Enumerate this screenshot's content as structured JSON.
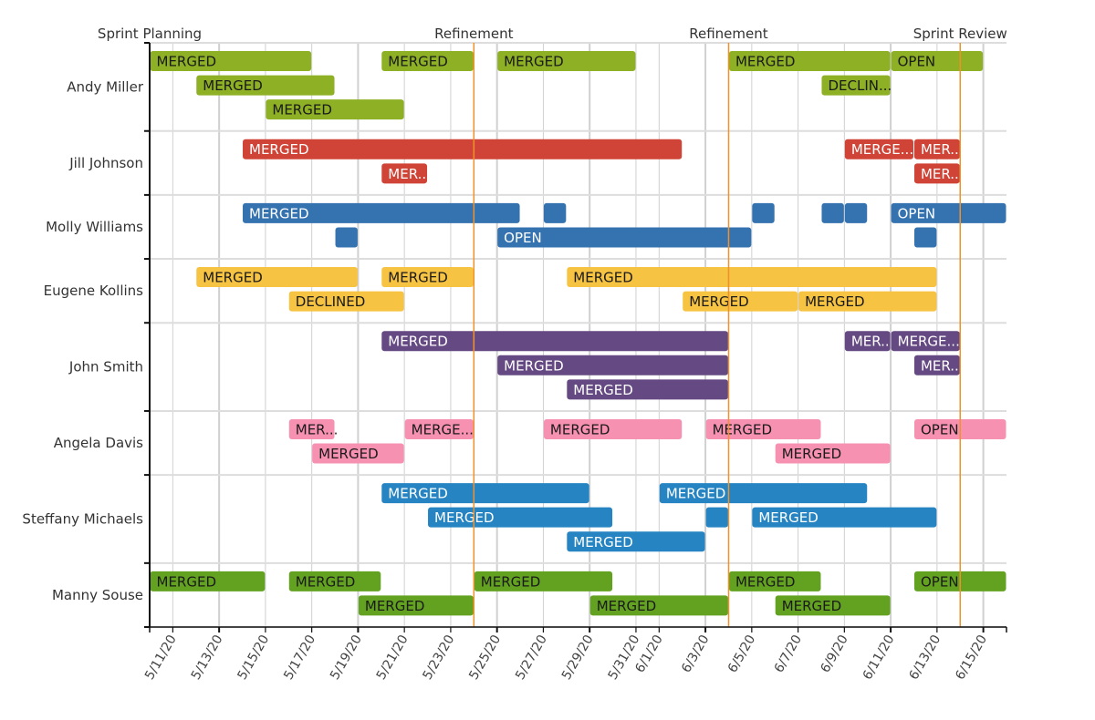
{
  "chart_data": {
    "type": "gantt",
    "title": "",
    "xlabel": "",
    "ylabel": "",
    "x_start": "5/10/20",
    "x_end": "6/16/20",
    "x_ticks": [
      "5/11/20",
      "5/13/20",
      "5/15/20",
      "5/17/20",
      "5/19/20",
      "5/21/20",
      "5/23/20",
      "5/25/20",
      "5/27/20",
      "5/29/20",
      "5/31/20",
      "6/1/20",
      "6/3/20",
      "6/5/20",
      "6/7/20",
      "6/9/20",
      "6/11/20",
      "6/13/20",
      "6/15/20"
    ],
    "x_tick_days": [
      1,
      3,
      5,
      7,
      9,
      11,
      13,
      15,
      17,
      19,
      21,
      22,
      24,
      26,
      28,
      30,
      32,
      34,
      36
    ],
    "grid": true,
    "milestones": [
      {
        "label": "Sprint Planning",
        "date": "5/10/20",
        "day": 0
      },
      {
        "label": "Refinement",
        "date": "5/24/20",
        "day": 14
      },
      {
        "label": "Refinement",
        "date": "6/4/20",
        "day": 25
      },
      {
        "label": "Sprint Review",
        "date": "6/14/20",
        "day": 35
      }
    ],
    "milestone_color": "#f0922b",
    "rows": [
      {
        "name": "Andy Miller",
        "color": "#8db024",
        "text_color": "#1a1a1a",
        "lanes": 3,
        "bars": [
          {
            "lane": 0,
            "start": 0,
            "end": 7,
            "label": "MERGED"
          },
          {
            "lane": 0,
            "start": 10,
            "end": 14,
            "label": "MERGED"
          },
          {
            "lane": 0,
            "start": 15,
            "end": 21,
            "label": "MERGED"
          },
          {
            "lane": 0,
            "start": 25,
            "end": 32,
            "label": "MERGED"
          },
          {
            "lane": 0,
            "start": 32,
            "end": 36,
            "label": "OPEN"
          },
          {
            "lane": 1,
            "start": 2,
            "end": 8,
            "label": "MERGED"
          },
          {
            "lane": 1,
            "start": 29,
            "end": 32,
            "label": "DECLIN..."
          },
          {
            "lane": 2,
            "start": 5,
            "end": 11,
            "label": "MERGED"
          }
        ]
      },
      {
        "name": "Jill Johnson",
        "color": "#d04437",
        "text_color": "#ffffff",
        "lanes": 2,
        "bars": [
          {
            "lane": 0,
            "start": 4,
            "end": 23,
            "label": "MERGED"
          },
          {
            "lane": 0,
            "start": 30,
            "end": 33,
            "label": "MERGE..."
          },
          {
            "lane": 0,
            "start": 33,
            "end": 35,
            "label": "MER.."
          },
          {
            "lane": 1,
            "start": 10,
            "end": 12,
            "label": "MER.."
          },
          {
            "lane": 1,
            "start": 33,
            "end": 35,
            "label": "MER.."
          }
        ]
      },
      {
        "name": "Molly Williams",
        "color": "#3572b0",
        "text_color": "#ffffff",
        "lanes": 2,
        "bars": [
          {
            "lane": 0,
            "start": 4,
            "end": 16,
            "label": "MERGED"
          },
          {
            "lane": 0,
            "start": 17,
            "end": 18,
            "label": ""
          },
          {
            "lane": 0,
            "start": 26,
            "end": 27,
            "label": ""
          },
          {
            "lane": 0,
            "start": 29,
            "end": 30,
            "label": ""
          },
          {
            "lane": 0,
            "start": 30,
            "end": 31,
            "label": ""
          },
          {
            "lane": 0,
            "start": 32,
            "end": 37,
            "label": "OPEN"
          },
          {
            "lane": 1,
            "start": 8,
            "end": 9,
            "label": ""
          },
          {
            "lane": 1,
            "start": 15,
            "end": 26,
            "label": "OPEN"
          },
          {
            "lane": 1,
            "start": 33,
            "end": 34,
            "label": ""
          }
        ]
      },
      {
        "name": "Eugene Kollins",
        "color": "#f6c342",
        "text_color": "#1a1a1a",
        "lanes": 2,
        "bars": [
          {
            "lane": 0,
            "start": 2,
            "end": 9,
            "label": "MERGED"
          },
          {
            "lane": 0,
            "start": 10,
            "end": 14,
            "label": "MERGED"
          },
          {
            "lane": 0,
            "start": 18,
            "end": 34,
            "label": "MERGED"
          },
          {
            "lane": 1,
            "start": 6,
            "end": 11,
            "label": "DECLINED"
          },
          {
            "lane": 1,
            "start": 23,
            "end": 28,
            "label": "MERGED"
          },
          {
            "lane": 1,
            "start": 28,
            "end": 34,
            "label": "MERGED"
          }
        ]
      },
      {
        "name": "John Smith",
        "color": "#654982",
        "text_color": "#ffffff",
        "lanes": 3,
        "bars": [
          {
            "lane": 0,
            "start": 10,
            "end": 25,
            "label": "MERGED"
          },
          {
            "lane": 0,
            "start": 30,
            "end": 32,
            "label": "MER.."
          },
          {
            "lane": 0,
            "start": 32,
            "end": 35,
            "label": "MERGE..."
          },
          {
            "lane": 1,
            "start": 15,
            "end": 25,
            "label": "MERGED"
          },
          {
            "lane": 1,
            "start": 33,
            "end": 35,
            "label": "MER.."
          },
          {
            "lane": 2,
            "start": 18,
            "end": 25,
            "label": "MERGED"
          }
        ]
      },
      {
        "name": "Angela Davis",
        "color": "#f691b2",
        "text_color": "#1a1a1a",
        "lanes": 2,
        "bars": [
          {
            "lane": 0,
            "start": 6,
            "end": 8,
            "label": "MER..."
          },
          {
            "lane": 0,
            "start": 11,
            "end": 14,
            "label": "MERGE..."
          },
          {
            "lane": 0,
            "start": 17,
            "end": 23,
            "label": "MERGED"
          },
          {
            "lane": 0,
            "start": 24,
            "end": 29,
            "label": "MERGED"
          },
          {
            "lane": 0,
            "start": 33,
            "end": 37,
            "label": "OPEN"
          },
          {
            "lane": 1,
            "start": 7,
            "end": 11,
            "label": "MERGED"
          },
          {
            "lane": 1,
            "start": 27,
            "end": 32,
            "label": "MERGED"
          }
        ]
      },
      {
        "name": "Steffany Michaels",
        "color": "#2684c2",
        "text_color": "#ffffff",
        "lanes": 3,
        "bars": [
          {
            "lane": 0,
            "start": 10,
            "end": 19,
            "label": "MERGED"
          },
          {
            "lane": 0,
            "start": 22,
            "end": 31,
            "label": "MERGED"
          },
          {
            "lane": 1,
            "start": 12,
            "end": 20,
            "label": "MERGED"
          },
          {
            "lane": 1,
            "start": 24,
            "end": 25,
            "label": ""
          },
          {
            "lane": 1,
            "start": 26,
            "end": 34,
            "label": "MERGED"
          },
          {
            "lane": 2,
            "start": 18,
            "end": 24,
            "label": "MERGED"
          }
        ]
      },
      {
        "name": "Manny Souse",
        "color": "#63a220",
        "text_color": "#1a1a1a",
        "lanes": 2,
        "bars": [
          {
            "lane": 0,
            "start": 0,
            "end": 5,
            "label": "MERGED"
          },
          {
            "lane": 0,
            "start": 6,
            "end": 10,
            "label": "MERGED"
          },
          {
            "lane": 0,
            "start": 14,
            "end": 20,
            "label": "MERGED"
          },
          {
            "lane": 0,
            "start": 25,
            "end": 29,
            "label": "MERGED"
          },
          {
            "lane": 0,
            "start": 33,
            "end": 37,
            "label": "OPEN"
          },
          {
            "lane": 1,
            "start": 9,
            "end": 14,
            "label": "MERGED"
          },
          {
            "lane": 1,
            "start": 19,
            "end": 25,
            "label": "MERGED"
          },
          {
            "lane": 1,
            "start": 27,
            "end": 32,
            "label": "MERGED"
          }
        ]
      }
    ]
  }
}
